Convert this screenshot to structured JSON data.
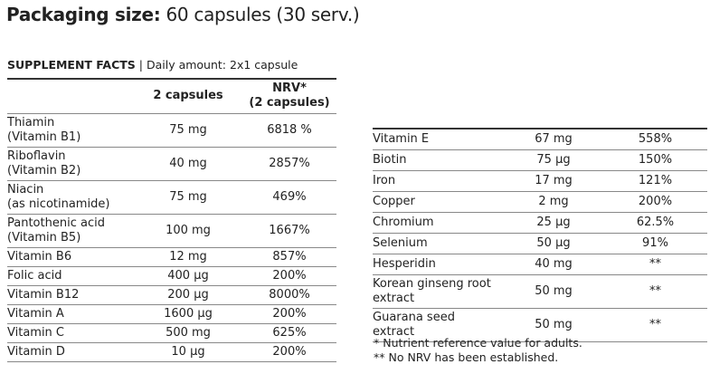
{
  "title": {
    "label": "Packaging size:",
    "value": "60 capsules (30 serv.)"
  },
  "facts": {
    "heading": "SUPPLEMENT FACTS",
    "separator": "|",
    "daily": "Daily amount: 2x1 capsule"
  },
  "left_table": {
    "headers": [
      "",
      "2 capsules",
      "NRV*",
      "(2 capsules)"
    ],
    "rows": [
      {
        "name": "Thiamin",
        "sub": "(Vitamin B1)",
        "amount": "75 mg",
        "nrv": "6818 %"
      },
      {
        "name": "Riboflavin",
        "sub": "(Vitamin B2)",
        "amount": "40 mg",
        "nrv": "2857%"
      },
      {
        "name": "Niacin",
        "sub": "(as nicotinamide)",
        "amount": "75 mg",
        "nrv": "469%"
      },
      {
        "name": "Pantothenic acid",
        "sub": "(Vitamin B5)",
        "amount": "100 mg",
        "nrv": "1667%"
      },
      {
        "name": "Vitamin B6",
        "amount": "12 mg",
        "nrv": "857%"
      },
      {
        "name": "Folic acid",
        "amount": "400 µg",
        "nrv": "200%"
      },
      {
        "name": "Vitamin B12",
        "amount": "200 µg",
        "nrv": "8000%"
      },
      {
        "name": "Vitamin A",
        "amount": "1600 µg",
        "nrv": "200%"
      },
      {
        "name": "Vitamin C",
        "amount": "500 mg",
        "nrv": "625%"
      },
      {
        "name": "Vitamin D",
        "amount": "10 µg",
        "nrv": "200%"
      }
    ]
  },
  "right_table": {
    "rows": [
      {
        "name": "Vitamin E",
        "amount": "67 mg",
        "nrv": "558%"
      },
      {
        "name": "Biotin",
        "amount": "75 µg",
        "nrv": "150%"
      },
      {
        "name": "Iron",
        "amount": "17 mg",
        "nrv": "121%"
      },
      {
        "name": "Copper",
        "amount": "2 mg",
        "nrv": "200%"
      },
      {
        "name": "Chromium",
        "amount": "25 µg",
        "nrv": "62.5%"
      },
      {
        "name": "Selenium",
        "amount": "50 µg",
        "nrv": "91%"
      },
      {
        "name": "Hesperidin",
        "amount": "40 mg",
        "nrv": "**"
      },
      {
        "name": "Korean ginseng root",
        "sub": "extract",
        "amount": "50 mg",
        "nrv": "**"
      },
      {
        "name": "Guarana seed",
        "sub": "extract",
        "amount": "50 mg",
        "nrv": "**"
      }
    ]
  },
  "footnotes": [
    "* Nutrient reference value for adults.",
    "** No NRV has been established."
  ]
}
